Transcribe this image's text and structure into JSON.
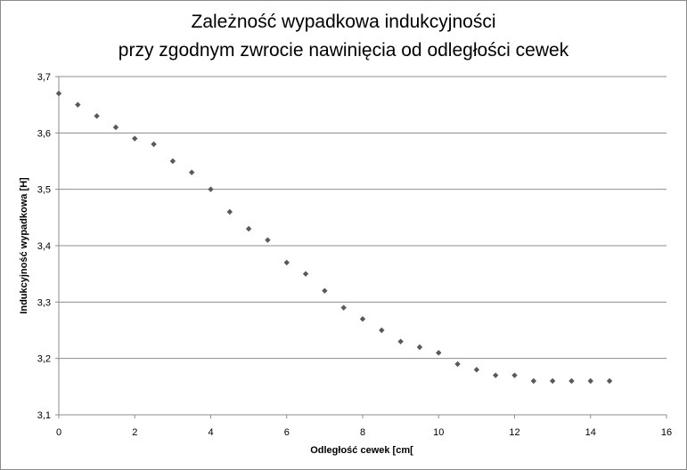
{
  "chart_data": {
    "type": "scatter",
    "title_line1": "Zależność wypadkowa indukcyjności",
    "title_line2": "przy zgodnym zwrocie nawinięcia od odległości cewek",
    "xlabel": "Odległość cewek [cm[",
    "ylabel": "Indukcyjność  wypadkowa [H]",
    "xlim": [
      0,
      16
    ],
    "ylim": [
      3.1,
      3.7
    ],
    "x_ticks": [
      "0",
      "2",
      "4",
      "6",
      "8",
      "10",
      "12",
      "14",
      "16"
    ],
    "y_ticks": [
      "3,1",
      "3,2",
      "3,3",
      "3,4",
      "3,5",
      "3,6",
      "3,7"
    ],
    "grid": "horizontal",
    "marker_color": "#595959",
    "x": [
      0,
      0.5,
      1,
      1.5,
      2,
      2.5,
      3,
      3.5,
      4,
      4.5,
      5,
      5.5,
      6,
      6.5,
      7,
      7.5,
      8,
      8.5,
      9,
      9.5,
      10,
      10.5,
      11,
      11.5,
      12,
      12.5,
      13,
      13.5,
      14,
      14.5
    ],
    "y": [
      3.67,
      3.65,
      3.63,
      3.61,
      3.59,
      3.58,
      3.55,
      3.53,
      3.5,
      3.46,
      3.43,
      3.41,
      3.37,
      3.35,
      3.32,
      3.29,
      3.27,
      3.25,
      3.23,
      3.22,
      3.21,
      3.19,
      3.18,
      3.17,
      3.17,
      3.16,
      3.16,
      3.16,
      3.16,
      3.16
    ]
  }
}
